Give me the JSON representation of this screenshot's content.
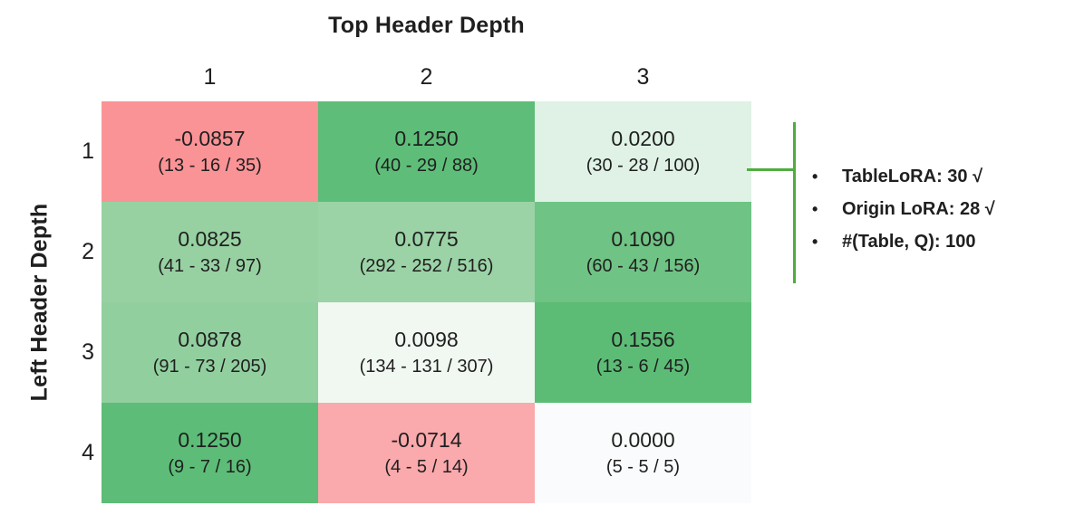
{
  "figure": {
    "background": "#ffffff",
    "text_color": "#1f1f1f"
  },
  "chart_data": {
    "type": "heatmap",
    "title": "Top Header Depth",
    "xlabel": "Top Header Depth",
    "ylabel": "Left Header Depth",
    "columns": [
      "1",
      "2",
      "3"
    ],
    "rows": [
      "1",
      "2",
      "3",
      "4"
    ],
    "colormap": "red-white-green diverging",
    "cells": [
      {
        "row": "1",
        "col": "1",
        "value": "-0.0857",
        "detail": "(13 - 16 / 35)",
        "bg": "#fa9396"
      },
      {
        "row": "1",
        "col": "2",
        "value": "0.1250",
        "detail": "(40 - 29 / 88)",
        "bg": "#5ebd78"
      },
      {
        "row": "1",
        "col": "3",
        "value": "0.0200",
        "detail": "(30 - 28 / 100)",
        "bg": "#dff2e5"
      },
      {
        "row": "2",
        "col": "1",
        "value": "0.0825",
        "detail": "(41 - 33 / 97)",
        "bg": "#97d1a2"
      },
      {
        "row": "2",
        "col": "2",
        "value": "0.0775",
        "detail": "(292 - 252 / 516)",
        "bg": "#9bd3a6"
      },
      {
        "row": "2",
        "col": "3",
        "value": "0.1090",
        "detail": "(60 - 43 / 156)",
        "bg": "#6fc384"
      },
      {
        "row": "3",
        "col": "1",
        "value": "0.0878",
        "detail": "(91 - 73 / 205)",
        "bg": "#92cf9f"
      },
      {
        "row": "3",
        "col": "2",
        "value": "0.0098",
        "detail": "(134 - 131 / 307)",
        "bg": "#f1f8f2"
      },
      {
        "row": "3",
        "col": "3",
        "value": "0.1556",
        "detail": "(13 - 6 / 45)",
        "bg": "#5cbc76"
      },
      {
        "row": "4",
        "col": "1",
        "value": "0.1250",
        "detail": "(9 - 7 / 16)",
        "bg": "#5dbd78"
      },
      {
        "row": "4",
        "col": "2",
        "value": "-0.0714",
        "detail": "(4 - 5 / 14)",
        "bg": "#faa9ac"
      },
      {
        "row": "4",
        "col": "3",
        "value": "0.0000",
        "detail": "(5 - 5 / 5)",
        "bg": "#fafbfc"
      }
    ]
  },
  "annotation": {
    "line_color": "#4fad3f",
    "bullet": "•",
    "target_cell": "row 1, col 3",
    "items": [
      "TableLoRA: 30 √",
      "Origin LoRA: 28 √",
      "#(Table, Q): 100"
    ]
  }
}
